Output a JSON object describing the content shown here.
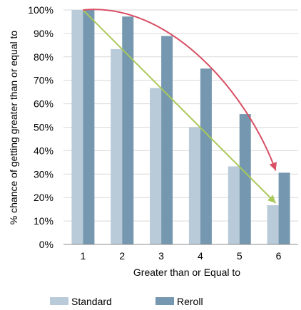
{
  "chart_data": {
    "type": "bar",
    "xlabel": "Greater than or Equal to",
    "ylabel": "% chance of getting greater than or equal to",
    "categories": [
      "1",
      "2",
      "3",
      "4",
      "5",
      "6"
    ],
    "ylim": [
      0,
      100
    ],
    "yticks": [
      0,
      10,
      20,
      30,
      40,
      50,
      60,
      70,
      80,
      90,
      100
    ],
    "ytick_labels": [
      "0%",
      "10%",
      "20%",
      "30%",
      "40%",
      "50%",
      "60%",
      "70%",
      "80%",
      "90%",
      "100%"
    ],
    "grid": true,
    "legend_position": "bottom",
    "series": [
      {
        "name": "Standard",
        "color": "#b9cad8",
        "values": [
          100,
          83.3,
          66.7,
          50,
          33.3,
          16.7
        ]
      },
      {
        "name": "Reroll",
        "color": "#7597af",
        "values": [
          100,
          97.2,
          88.9,
          75,
          55.6,
          30.6
        ]
      }
    ],
    "annotations": [
      {
        "kind": "arrow",
        "shape": "straight",
        "color": "#a9c95a",
        "from": {
          "category": "1",
          "value": 100
        },
        "to": {
          "category": "6",
          "value": 16.7
        }
      },
      {
        "kind": "arrow",
        "shape": "curved",
        "color": "#d94f64",
        "from": {
          "category": "1",
          "value": 100
        },
        "to": {
          "category": "6",
          "value": 30.6
        }
      }
    ]
  }
}
